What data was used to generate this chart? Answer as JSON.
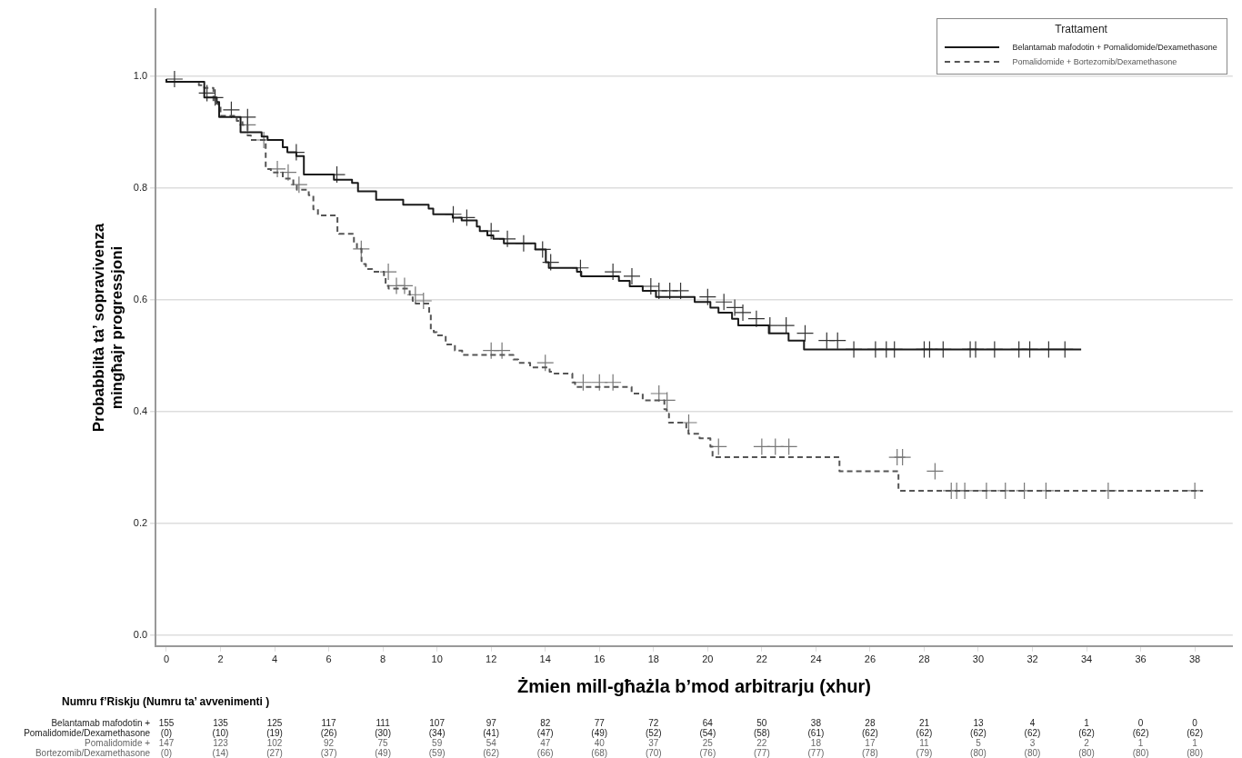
{
  "chart_data": {
    "type": "step",
    "xlabel": "Żmien mill-għażla b’mod arbitrarju (xhur)",
    "ylabel": "Probabbiltà ta’ sopravivenza mingħajr progressjoni",
    "legend_title": "Trattament",
    "legend": "top right",
    "grid": "y",
    "xlim": [
      -0.4,
      39.4
    ],
    "ylim": [
      -0.02,
      1.12
    ],
    "xticks": [
      0,
      2,
      4,
      6,
      8,
      10,
      12,
      14,
      16,
      18,
      20,
      22,
      24,
      26,
      28,
      30,
      32,
      34,
      36,
      38
    ],
    "yticks": [
      {
        "value": 0,
        "label": "0.0"
      },
      0.2,
      0.4,
      0.6,
      0.8,
      {
        "value": 1,
        "label": "1.0"
      }
    ],
    "series": [
      {
        "name": "Belantamab mafodotin + Pomalidomide/Dexamethasone",
        "color": "#1a1a1a",
        "line_style": "solid",
        "x": [
          0,
          1.4,
          1.86,
          1.95,
          2.74,
          3.52,
          3.74,
          4.3,
          4.47,
          4.8,
          5.08,
          6.19,
          6.86,
          7.08,
          7.75,
          8.75,
          9.69,
          9.86,
          10.58,
          10.91,
          11.47,
          11.58,
          11.86,
          12.08,
          12.47,
          13.63,
          14.02,
          14.13,
          15.17,
          15.33,
          16.72,
          17.12,
          17.6,
          18.09,
          19.52,
          20.1,
          20.4,
          20.9,
          21.13,
          22.26,
          22.99,
          23.56,
          25.33,
          33.8
        ],
        "values": [
          0.995,
          0.99,
          0.962,
          0.954,
          0.927,
          0.9,
          0.892,
          0.886,
          0.873,
          0.864,
          0.857,
          0.824,
          0.815,
          0.809,
          0.794,
          0.779,
          0.77,
          0.763,
          0.753,
          0.747,
          0.742,
          0.731,
          0.723,
          0.715,
          0.709,
          0.701,
          0.69,
          0.667,
          0.657,
          0.65,
          0.642,
          0.634,
          0.624,
          0.616,
          0.605,
          0.596,
          0.586,
          0.577,
          0.566,
          0.554,
          0.54,
          0.527,
          0.511,
          0.511
        ]
      },
      {
        "name": "Pomalidomide + Bortezomib/Dexamethasone",
        "color": "#555555",
        "line_style": "dashed",
        "x": [
          0,
          1.2,
          1.4,
          1.74,
          1.92,
          2.0,
          2.6,
          2.81,
          3.0,
          3.12,
          3.67,
          3.86,
          4.3,
          4.69,
          4.82,
          5.26,
          5.43,
          5.6,
          6.32,
          6.38,
          6.93,
          7.04,
          7.21,
          7.26,
          7.37,
          7.6,
          8.04,
          8.1,
          8.21,
          8.99,
          9.1,
          9.21,
          9.71,
          9.77,
          9.88,
          9.99,
          10.32,
          10.66,
          10.93,
          12.82,
          13.0,
          13.44,
          14.16,
          14.27,
          15.0,
          15.1,
          17.19,
          17.6,
          18.4,
          18.49,
          18.57,
          19.21,
          19.29,
          19.7,
          20.1,
          20.18,
          24.87,
          27.05,
          28.1,
          38.3
        ],
        "values": [
          0.995,
          0.99,
          0.984,
          0.979,
          0.951,
          0.946,
          0.929,
          0.92,
          0.913,
          0.894,
          0.886,
          0.834,
          0.828,
          0.817,
          0.806,
          0.797,
          0.787,
          0.762,
          0.751,
          0.721,
          0.718,
          0.702,
          0.691,
          0.669,
          0.664,
          0.655,
          0.65,
          0.642,
          0.625,
          0.62,
          0.609,
          0.598,
          0.593,
          0.576,
          0.547,
          0.542,
          0.536,
          0.52,
          0.509,
          0.501,
          0.493,
          0.487,
          0.479,
          0.471,
          0.468,
          0.452,
          0.444,
          0.432,
          0.42,
          0.404,
          0.396,
          0.38,
          0.368,
          0.36,
          0.352,
          0.337,
          0.318,
          0.293,
          0.258,
          0.258
        ]
      },
      {
        "type": "scatter",
        "marker": "cross",
        "color": "#333333",
        "x": [
          0.3,
          1.5,
          1.8,
          2.4,
          3.0,
          4.8,
          6.3,
          10.6,
          11.1,
          12.0,
          12.6,
          13.2,
          13.9,
          14.2,
          15.3,
          16.5,
          17.2,
          17.9,
          18.2,
          18.6,
          19.0,
          20.0,
          20.6,
          21.0,
          21.3,
          21.8,
          22.3,
          22.9,
          23.6,
          24.4,
          24.8,
          25.4,
          26.2,
          26.6,
          26.9,
          28.0,
          28.2,
          28.7,
          29.7,
          29.9,
          30.6,
          31.5,
          31.9,
          32.6,
          33.2
        ],
        "values": [
          0.995,
          0.97,
          0.962,
          0.94,
          0.927,
          0.864,
          0.824,
          0.753,
          0.747,
          0.723,
          0.709,
          0.701,
          0.69,
          0.667,
          0.657,
          0.65,
          0.642,
          0.624,
          0.616,
          0.616,
          0.616,
          0.605,
          0.596,
          0.586,
          0.577,
          0.566,
          0.554,
          0.554,
          0.54,
          0.527,
          0.527,
          0.511,
          0.511,
          0.511,
          0.511,
          0.511,
          0.511,
          0.511,
          0.511,
          0.511,
          0.511,
          0.511,
          0.511,
          0.511,
          0.511
        ]
      },
      {
        "type": "scatter",
        "marker": "cross",
        "color": "#777777",
        "x": [
          3.0,
          3.6,
          4.1,
          4.5,
          4.9,
          7.2,
          8.2,
          8.5,
          8.8,
          9.2,
          9.5,
          12.0,
          12.4,
          14.0,
          15.4,
          16.0,
          16.5,
          18.2,
          18.5,
          19.3,
          20.4,
          22.0,
          22.5,
          23.0,
          27.0,
          27.2,
          28.4,
          29.0,
          29.2,
          29.5,
          30.3,
          31.0,
          31.7,
          32.5,
          34.8,
          38.0
        ],
        "values": [
          0.913,
          0.886,
          0.834,
          0.828,
          0.806,
          0.691,
          0.65,
          0.625,
          0.625,
          0.609,
          0.598,
          0.509,
          0.509,
          0.487,
          0.452,
          0.452,
          0.452,
          0.432,
          0.42,
          0.38,
          0.337,
          0.337,
          0.337,
          0.337,
          0.318,
          0.318,
          0.293,
          0.258,
          0.258,
          0.258,
          0.258,
          0.258,
          0.258,
          0.258,
          0.258,
          0.258
        ]
      }
    ],
    "annotations": [
      "Numru f’Riskju (Numru ta’ avvenimenti )",
      "Belantamab mafodotin +",
      "155",
      "135",
      "125",
      "117",
      "111",
      "107",
      "97",
      "82",
      "77",
      "72",
      "64",
      "50",
      "38",
      "28",
      "21",
      "13",
      "4",
      "1",
      "0",
      "0",
      "Pomalidomide/Dexamethasone",
      "(0)",
      "(10)",
      "(19)",
      "(26)",
      "(30)",
      "(34)",
      "(41)",
      "(47)",
      "(49)",
      "(52)",
      "(54)",
      "(58)",
      "(61)",
      "(62)",
      "(62)",
      "(62)",
      "(62)",
      "(62)",
      "(62)",
      "(62)",
      "Pomalidomide +",
      "147",
      "123",
      "102",
      "92",
      "75",
      "59",
      "54",
      "47",
      "40",
      "37",
      "25",
      "22",
      "18",
      "17",
      "11",
      "5",
      "3",
      "2",
      "1",
      "1",
      "Bortezomib/Dexamethasone",
      "(0)",
      "(14)",
      "(27)",
      "(37)",
      "(49)",
      "(59)",
      "(62)",
      "(66)",
      "(68)",
      "(70)",
      "(76)",
      "(77)",
      "(77)",
      "(78)",
      "(79)",
      "(80)",
      "(80)",
      "(80)",
      "(80)",
      "(80)"
    ]
  }
}
